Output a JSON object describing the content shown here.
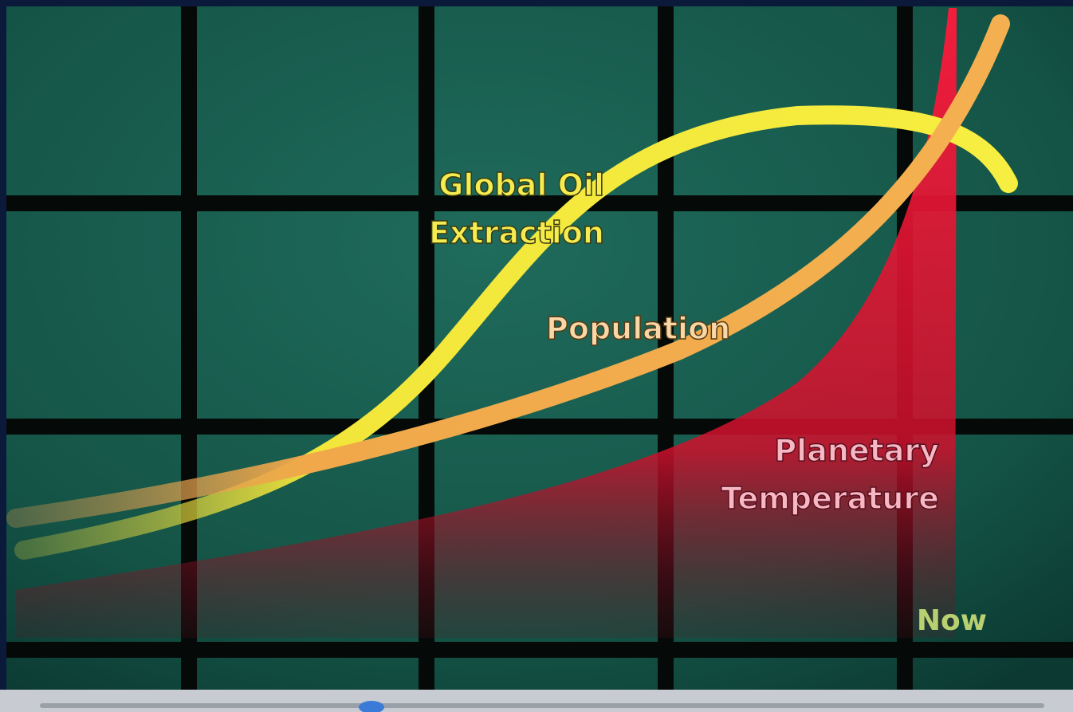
{
  "labels": {
    "oil": [
      "Global Oil",
      "Extraction"
    ],
    "population": "Population",
    "temperature": [
      "Planetary",
      "Temperature"
    ],
    "now": "Now"
  }
}
